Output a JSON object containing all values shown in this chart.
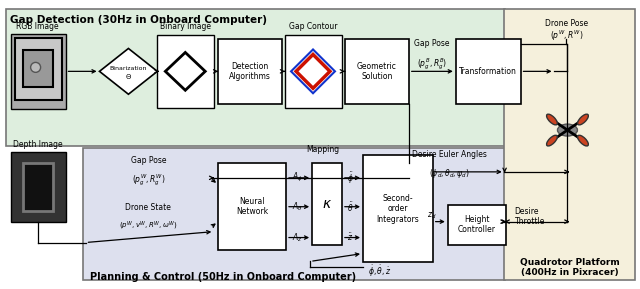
{
  "fig_width": 6.4,
  "fig_height": 2.89,
  "dpi": 100,
  "bg_green": "#deeede",
  "bg_blue": "#dde0ee",
  "bg_beige": "#f5f0dc",
  "title_top": "Gap Detection (30Hz in Onboard Computer)",
  "title_bottom": "Planning & Control (50Hz in Onboard Computer)",
  "title_quad": "Quadrotor Platform\n(400Hz in Pixracer)",
  "label_rgb": "RGB Image",
  "label_binary": "Binary Image",
  "label_gap_contour": "Gap Contour",
  "label_binarization": "Binarization",
  "label_detection": "Detection\nAlgorithms",
  "label_geometric": "Geometric\nSolution",
  "label_gap_pose_top": "Gap Pose",
  "label_gap_pose_top_math": "$(p_g^B, R_g^B)$",
  "label_transformation": "Transformation",
  "label_drone_pose": "Drone Pose",
  "label_drone_pose_math": "$(p^W, R^W)$",
  "label_depth": "Depth Image",
  "label_gap_pose_bot": "Gap Pose",
  "label_gap_pose_bot_math": "$(p_g^W, R_g^W)$",
  "label_drone_state": "Drone State",
  "label_drone_state_math": "$(p^W, v^W, R^W, \\omega^W)$",
  "label_neural": "Neural\nNetwork",
  "label_mapping": "Mapping",
  "label_kappa": "$\\kappa$",
  "label_second": "Second-\norder\nIntegrators",
  "label_euler": "Desire Euler Angles",
  "label_euler_math": "$(\\phi_d, \\theta_d, \\psi_d)$",
  "label_height": "Height\nController",
  "label_throttle": "Desire\nThrottle",
  "label_zd": "$z_d$",
  "label_feedback": "$\\dot{\\phi}, \\dot{\\theta}, \\dot{z}$",
  "label_aphi": "$A_\\phi$",
  "label_atheta": "$A_\\theta$",
  "label_az": "$A_z$",
  "label_phiddot": "$\\ddot{\\phi}$",
  "label_thetaddot": "$\\ddot{\\theta}$",
  "label_zddot": "$\\ddot{z}$"
}
